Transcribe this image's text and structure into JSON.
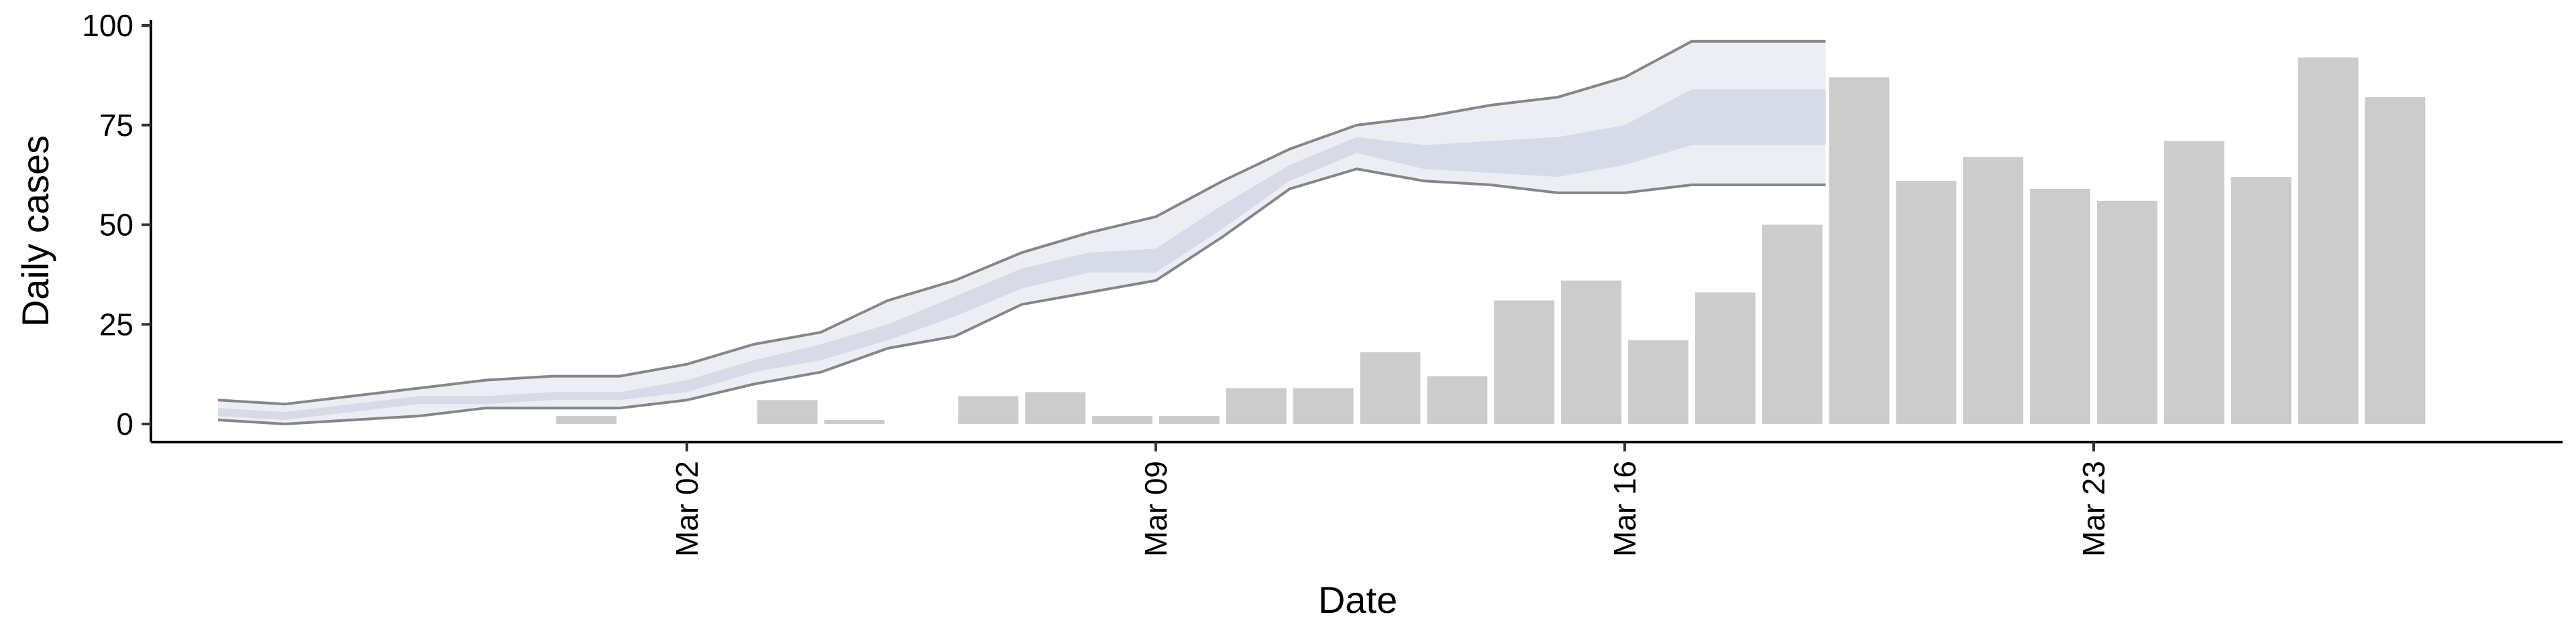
{
  "chart_data": {
    "type": "bar",
    "xlabel": "Date",
    "ylabel": "Daily cases",
    "ylim": [
      0,
      100
    ],
    "yticks": [
      0,
      25,
      50,
      75,
      100
    ],
    "xlim": [
      "2020-02-23",
      "2020-03-30"
    ],
    "xticks": [
      {
        "date": "2020-03-02",
        "label": "Mar 02"
      },
      {
        "date": "2020-03-09",
        "label": "Mar 09"
      },
      {
        "date": "2020-03-16",
        "label": "Mar 16"
      },
      {
        "date": "2020-03-23",
        "label": "Mar 23"
      }
    ],
    "grid": false,
    "legend": "none",
    "bars": {
      "color": "#cccccc",
      "dates": [
        "2020-02-27",
        "2020-02-28",
        "2020-02-29",
        "2020-03-01",
        "2020-03-02",
        "2020-03-03",
        "2020-03-04",
        "2020-03-05",
        "2020-03-06",
        "2020-03-07",
        "2020-03-08",
        "2020-03-09",
        "2020-03-10",
        "2020-03-11",
        "2020-03-12",
        "2020-03-13",
        "2020-03-14",
        "2020-03-15",
        "2020-03-16",
        "2020-03-17",
        "2020-03-18",
        "2020-03-19",
        "2020-03-20",
        "2020-03-21",
        "2020-03-22",
        "2020-03-23",
        "2020-03-24",
        "2020-03-25",
        "2020-03-26",
        "2020-03-27",
        "2020-03-28"
      ],
      "values": [
        0,
        0,
        2,
        0,
        0,
        6,
        1,
        0,
        7,
        8,
        2,
        2,
        9,
        9,
        18,
        12,
        31,
        36,
        21,
        33,
        50,
        87,
        61,
        67,
        59,
        56,
        71,
        62,
        92,
        82,
        0
      ]
    },
    "estimate": {
      "dates": [
        "2020-02-24",
        "2020-02-25",
        "2020-02-26",
        "2020-02-27",
        "2020-02-28",
        "2020-02-29",
        "2020-03-01",
        "2020-03-02",
        "2020-03-03",
        "2020-03-04",
        "2020-03-05",
        "2020-03-06",
        "2020-03-07",
        "2020-03-08",
        "2020-03-09",
        "2020-03-10",
        "2020-03-11",
        "2020-03-12",
        "2020-03-13",
        "2020-03-14",
        "2020-03-15",
        "2020-03-16",
        "2020-03-17",
        "2020-03-18",
        "2020-03-19"
      ],
      "outer_upper": [
        6,
        5,
        7,
        9,
        11,
        12,
        12,
        15,
        20,
        23,
        31,
        36,
        43,
        48,
        52,
        61,
        69,
        75,
        77,
        80,
        82,
        87,
        96,
        96,
        96
      ],
      "outer_lower": [
        1,
        0,
        1,
        2,
        4,
        4,
        4,
        6,
        10,
        13,
        19,
        22,
        30,
        33,
        36,
        47,
        59,
        64,
        61,
        60,
        58,
        58,
        60,
        60,
        60
      ],
      "inner_upper": [
        4,
        3,
        5,
        7,
        7,
        8,
        8,
        11,
        16,
        20,
        25,
        32,
        39,
        43,
        44,
        55,
        65,
        72,
        70,
        71,
        72,
        75,
        84,
        84,
        84
      ],
      "inner_lower": [
        2,
        1,
        3,
        5,
        5,
        6,
        6,
        8,
        13,
        16,
        21,
        27,
        34,
        38,
        38,
        49,
        61,
        68,
        64,
        63,
        62,
        65,
        70,
        70,
        70
      ],
      "outer_color": "#eceef4",
      "inner_color": "#c5cbdd",
      "line_color": "#7a7a7a"
    }
  }
}
